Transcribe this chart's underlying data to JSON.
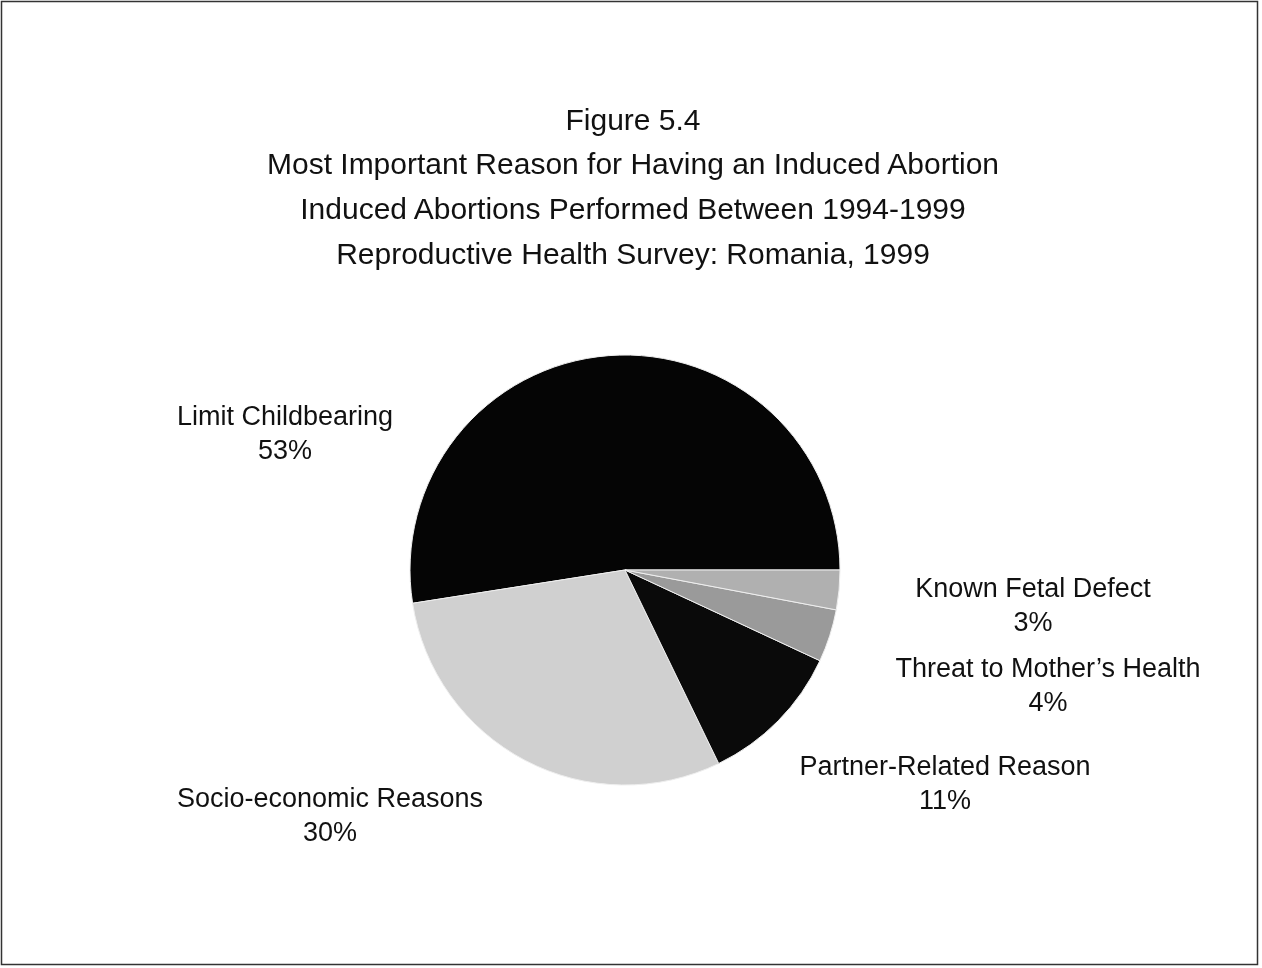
{
  "chart_data": {
    "type": "pie",
    "title": "Figure 5.4",
    "subtitle": "Most Important Reason for Having an Induced Abortion\nInduced Abortions Performed Between 1994-1999\nReproductive Health Survey: Romania, 1999",
    "categories": [
      "Limit Childbearing",
      "Socio-economic Reasons",
      "Partner-Related Reason",
      "Threat to Mother’s Health",
      "Known Fetal Defect"
    ],
    "values": [
      53,
      30,
      11,
      4,
      3
    ],
    "value_labels": [
      "53%",
      "30%",
      "11%",
      "4%",
      "3%"
    ],
    "colors": [
      "#050505",
      "#d0d0d0",
      "#0a0a0a",
      "#9a9a9a",
      "#b0b0b0"
    ]
  }
}
